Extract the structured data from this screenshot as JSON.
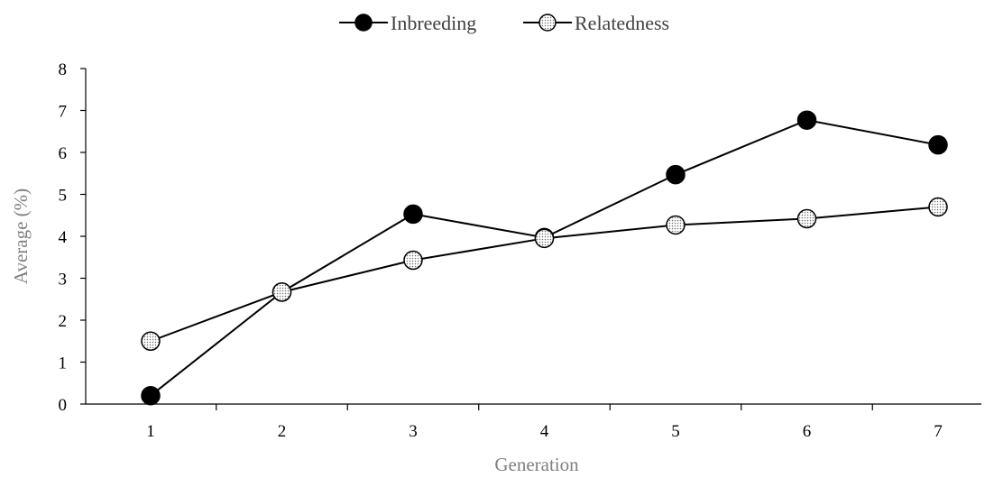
{
  "chart_data": {
    "type": "line",
    "title": "",
    "xlabel": "Generation",
    "ylabel": "Average (%)",
    "categories": [
      "1",
      "2",
      "3",
      "4",
      "5",
      "6",
      "7"
    ],
    "ylim": [
      0,
      8
    ],
    "yticks": [
      "0",
      "1",
      "2",
      "3",
      "4",
      "5",
      "6",
      "7",
      "8"
    ],
    "grid": false,
    "legend_position": "top-center",
    "series": [
      {
        "name": "Inbreeding",
        "values": [
          0.2,
          2.67,
          4.53,
          3.97,
          5.47,
          6.77,
          6.18
        ],
        "marker": "filled-black-circle",
        "color": "#000000"
      },
      {
        "name": "Relatedness",
        "values": [
          1.5,
          2.67,
          3.43,
          3.95,
          4.27,
          4.42,
          4.7
        ],
        "marker": "dotted-circle",
        "color": "#000000"
      }
    ]
  }
}
